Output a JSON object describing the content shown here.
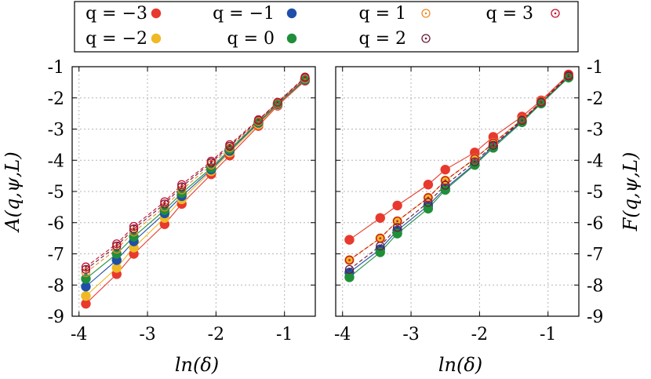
{
  "chart_data": [
    {
      "type": "line",
      "panel": "left",
      "xlabel": "ln(δ)",
      "ylabel": "A(q,ψ,L)",
      "ylabel_side": "left",
      "xlim": [
        -4.1,
        -0.55
      ],
      "ylim": [
        -9,
        -1
      ],
      "xticks": [
        "-4",
        "-3",
        "-2",
        "-1"
      ],
      "yticks": [
        "-1",
        "-2",
        "-3",
        "-4",
        "-5",
        "-6",
        "-7",
        "-8",
        "-9"
      ],
      "grid": true,
      "x": [
        -3.9,
        -3.45,
        -3.2,
        -2.75,
        -2.5,
        -2.07,
        -1.8,
        -1.38,
        -1.1,
        -0.7
      ],
      "series": [
        {
          "name": "q = −3",
          "color": "#e8392e",
          "marker": "filled",
          "line": "solid",
          "values": [
            -8.6,
            -7.65,
            -7.0,
            -6.05,
            -5.4,
            -4.45,
            -3.85,
            -2.9,
            -2.25,
            -1.45
          ]
        },
        {
          "name": "q = −2",
          "color": "#efb925",
          "marker": "filled",
          "line": "solid",
          "values": [
            -8.35,
            -7.45,
            -6.8,
            -5.85,
            -5.25,
            -4.35,
            -3.75,
            -2.85,
            -2.22,
            -1.42
          ]
        },
        {
          "name": "q = −1",
          "color": "#1f4fa8",
          "marker": "filled",
          "line": "solid",
          "values": [
            -8.05,
            -7.2,
            -6.6,
            -5.7,
            -5.15,
            -4.3,
            -3.7,
            -2.8,
            -2.2,
            -1.42
          ]
        },
        {
          "name": "q = 0",
          "color": "#1f8f3a",
          "marker": "filled",
          "line": "solid",
          "values": [
            -7.8,
            -7.0,
            -6.45,
            -5.6,
            -5.05,
            -4.25,
            -3.65,
            -2.78,
            -2.18,
            -1.4
          ]
        },
        {
          "name": "q = 1",
          "color": "#f08a28",
          "marker": "open",
          "line": "dashed",
          "values": [
            -7.6,
            -6.85,
            -6.3,
            -5.5,
            -4.95,
            -4.15,
            -3.6,
            -2.75,
            -2.17,
            -1.38
          ]
        },
        {
          "name": "q = 2",
          "color": "#6b1a3c",
          "marker": "open",
          "line": "dashed",
          "values": [
            -7.5,
            -6.75,
            -6.2,
            -5.4,
            -4.85,
            -4.08,
            -3.55,
            -2.72,
            -2.15,
            -1.35
          ]
        },
        {
          "name": "q = 3",
          "color": "#c8102e",
          "marker": "open",
          "line": "dashed",
          "values": [
            -7.42,
            -6.68,
            -6.12,
            -5.33,
            -4.78,
            -4.03,
            -3.5,
            -2.7,
            -2.14,
            -1.33
          ]
        }
      ]
    },
    {
      "type": "line",
      "panel": "right",
      "xlabel": "ln(δ)",
      "ylabel": "F(q,ψ,L)",
      "ylabel_side": "right",
      "xlim": [
        -4.1,
        -0.55
      ],
      "ylim": [
        -9,
        -1
      ],
      "xticks": [
        "-4",
        "-3",
        "-2",
        "-1"
      ],
      "yticks": [
        "-1",
        "-2",
        "-3",
        "-4",
        "-5",
        "-6",
        "-7",
        "-8",
        "-9"
      ],
      "grid": true,
      "x": [
        -3.9,
        -3.45,
        -3.2,
        -2.75,
        -2.5,
        -2.07,
        -1.8,
        -1.38,
        -1.1,
        -0.7
      ],
      "series": [
        {
          "name": "q = −3",
          "color": "#e8392e",
          "marker": "filled",
          "line": "solid",
          "values": [
            -6.55,
            -5.85,
            -5.45,
            -4.78,
            -4.3,
            -3.75,
            -3.25,
            -2.6,
            -2.08,
            -1.25
          ]
        },
        {
          "name": "q = −2",
          "color": "#efb925",
          "marker": "filled",
          "line": "solid",
          "values": [
            -7.2,
            -6.5,
            -5.95,
            -5.2,
            -4.65,
            -3.95,
            -3.45,
            -2.7,
            -2.12,
            -1.3
          ]
        },
        {
          "name": "q = −1",
          "color": "#1f4fa8",
          "marker": "filled",
          "line": "solid",
          "values": [
            -7.6,
            -6.85,
            -6.25,
            -5.45,
            -4.9,
            -4.12,
            -3.55,
            -2.75,
            -2.15,
            -1.33
          ]
        },
        {
          "name": "q = 0",
          "color": "#1f8f3a",
          "marker": "filled",
          "line": "solid",
          "values": [
            -7.75,
            -6.95,
            -6.35,
            -5.55,
            -4.95,
            -4.15,
            -3.6,
            -2.78,
            -2.18,
            -1.35
          ]
        },
        {
          "name": "q = 1",
          "color": "#f08a28",
          "marker": "open",
          "line": "dashed",
          "values": [
            -7.2,
            -6.5,
            -5.95,
            -5.2,
            -4.65,
            -3.95,
            -3.45,
            -2.7,
            -2.12,
            -1.28
          ]
        },
        {
          "name": "q = 2",
          "color": "#6b1a3c",
          "marker": "open",
          "line": "dashed",
          "values": [
            -7.5,
            -6.75,
            -6.15,
            -5.35,
            -4.8,
            -4.05,
            -3.52,
            -2.72,
            -2.14,
            -1.3
          ]
        },
        {
          "name": "q = 3",
          "color": "#c8102e",
          "marker": "open",
          "line": "dashed",
          "values": [
            -7.2,
            -6.5,
            -5.95,
            -5.2,
            -4.65,
            -3.95,
            -3.45,
            -2.7,
            -2.12,
            -1.27
          ]
        }
      ]
    }
  ],
  "legend": {
    "placement": "top",
    "entries": [
      {
        "label": "q = −3",
        "color": "#e8392e",
        "marker": "filled"
      },
      {
        "label": "q = −1",
        "color": "#1f4fa8",
        "marker": "filled"
      },
      {
        "label": "q = 1",
        "color": "#f08a28",
        "marker": "open"
      },
      {
        "label": "q = 3",
        "color": "#c8102e",
        "marker": "open"
      },
      {
        "label": "q = −2",
        "color": "#efb925",
        "marker": "filled"
      },
      {
        "label": "q = 0",
        "color": "#1f8f3a",
        "marker": "filled"
      },
      {
        "label": "q = 2",
        "color": "#6b1a3c",
        "marker": "open"
      }
    ]
  }
}
